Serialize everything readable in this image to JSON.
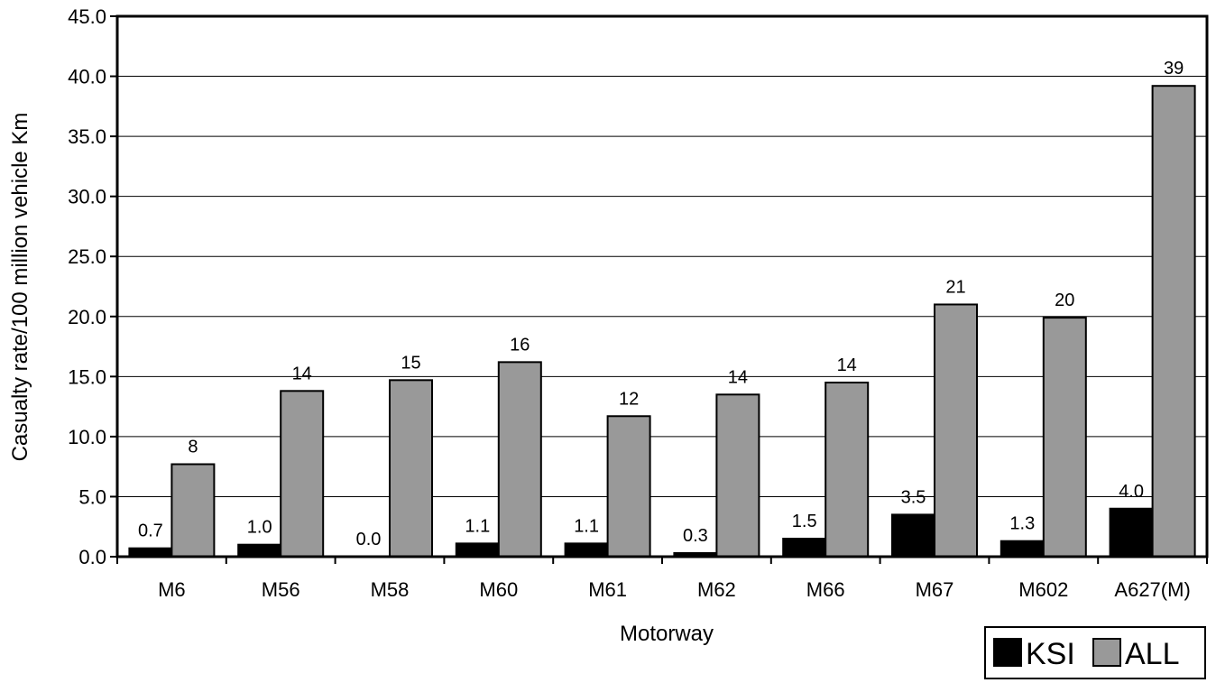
{
  "chart_data": {
    "type": "bar",
    "categories": [
      "M6",
      "M56",
      "M58",
      "M60",
      "M61",
      "M62",
      "M66",
      "M67",
      "M602",
      "A627(M)"
    ],
    "series": [
      {
        "name": "KSI",
        "color": "#000000",
        "values": [
          0.7,
          1.0,
          0.0,
          1.1,
          1.1,
          0.3,
          1.5,
          3.5,
          1.3,
          4.0
        ],
        "labels": [
          "0.7",
          "1.0",
          "0.0",
          "1.1",
          "1.1",
          "0.3",
          "1.5",
          "3.5",
          "1.3",
          "4.0"
        ]
      },
      {
        "name": "ALL",
        "color": "#999999",
        "values": [
          7.7,
          13.8,
          14.7,
          16.2,
          11.7,
          13.5,
          14.5,
          21.0,
          19.9,
          39.2
        ],
        "labels": [
          "8",
          "14",
          "15",
          "16",
          "12",
          "14",
          "14",
          "21",
          "20",
          "39"
        ]
      }
    ],
    "yticks": [
      "0.0",
      "5.0",
      "10.0",
      "15.0",
      "20.0",
      "25.0",
      "30.0",
      "35.0",
      "40.0",
      "45.0"
    ],
    "ylim": [
      0,
      45
    ],
    "xlabel": "Motorway",
    "ylabel": "Casualty rate/100 million vehicle Km",
    "grid": true,
    "legend_position": "bottom-right"
  }
}
